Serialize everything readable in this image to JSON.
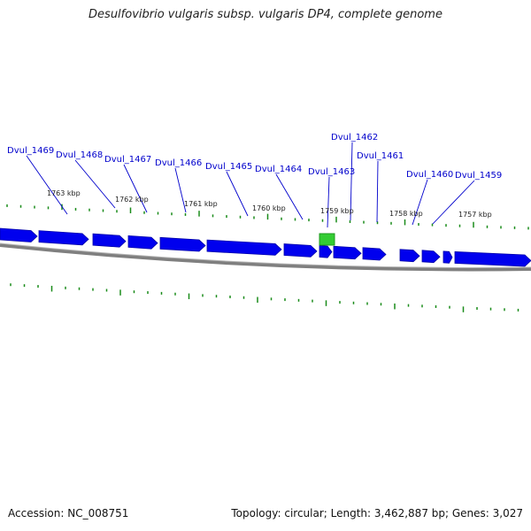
{
  "title": "Desulfovibrio vulgaris subsp. vulgaris DP4, complete genome",
  "footer": {
    "accession": "Accession: NC_008751",
    "info": "Topology: circular; Length: 3,462,887 bp; Genes: 3,027"
  },
  "colors": {
    "gene": "#0000ee",
    "highlight": "#33cc33",
    "tick": "#1a8c1a",
    "label": "#0000cc",
    "backbone": "#808080"
  },
  "kbp_labels": [
    "1763 kbp",
    "1762 kbp",
    "1761 kbp",
    "1760 kbp",
    "1759 kbp",
    "1758 kbp",
    "1757 kbp"
  ],
  "gene_labels": [
    "Dvul_1469",
    "Dvul_1468",
    "Dvul_1467",
    "Dvul_1466",
    "Dvul_1465",
    "Dvul_1464",
    "Dvul_1463",
    "Dvul_1462",
    "Dvul_1461",
    "Dvul_1460",
    "Dvul_1459"
  ]
}
